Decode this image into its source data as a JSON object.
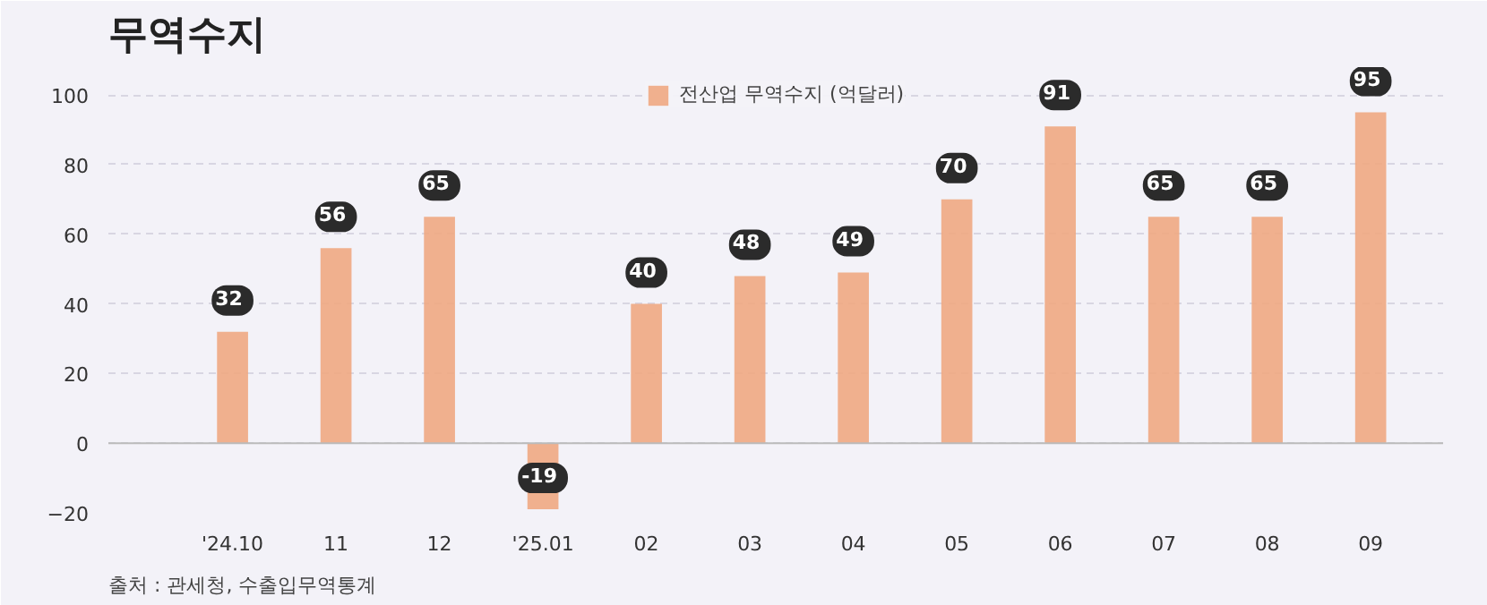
{
  "chart_data": {
    "type": "bar",
    "title": "무역수지",
    "categories": [
      "'24.10",
      "11",
      "12",
      "'25.01",
      "02",
      "03",
      "04",
      "05",
      "06",
      "07",
      "08",
      "09"
    ],
    "series": [
      {
        "name": "전산업 무역수지 (억달러)",
        "color": "#f0a882",
        "values": [
          32,
          56,
          65,
          -19,
          40,
          48,
          49,
          70,
          91,
          65,
          65,
          95
        ]
      }
    ],
    "ylim": [
      -20,
      108
    ],
    "yticks": [
      -20,
      0,
      20,
      40,
      60,
      80,
      100
    ],
    "grid": "y",
    "legend": "top right",
    "data_labels": true,
    "annotations": [
      "출처 : 관세청, 수출입무역통계"
    ]
  }
}
